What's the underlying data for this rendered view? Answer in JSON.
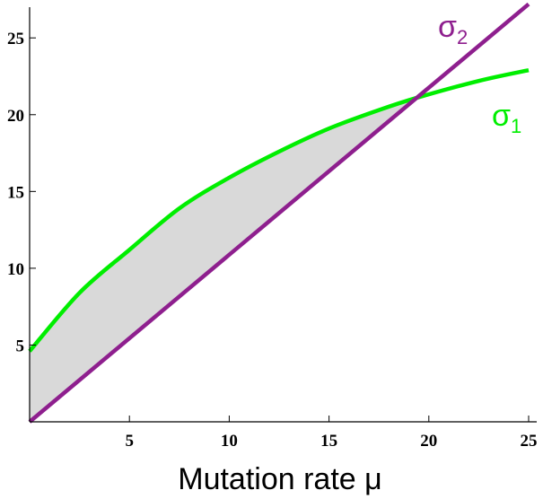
{
  "chart_data": {
    "type": "line",
    "title": "",
    "xlabel": "Mutation rate μ",
    "ylabel": "",
    "xlim": [
      0,
      25
    ],
    "ylim": [
      0,
      27
    ],
    "xticks": [
      5,
      10,
      15,
      20,
      25
    ],
    "yticks": [
      5,
      10,
      15,
      20,
      25
    ],
    "grid": false,
    "legend": "inline labels at right end of curves",
    "series": [
      {
        "name": "σ1",
        "label_main": "σ",
        "label_sub": "1",
        "color": "#00ee00",
        "x": [
          0,
          2.5,
          5,
          7.5,
          10,
          12.5,
          15,
          17.5,
          19.4,
          22.5,
          25
        ],
        "y": [
          4.6,
          8.4,
          11.2,
          13.9,
          15.9,
          17.6,
          19.1,
          20.3,
          21.1,
          22.2,
          22.9
        ]
      },
      {
        "name": "σ2",
        "label_main": "σ",
        "label_sub": "2",
        "color": "#8e1f8e",
        "x": [
          0,
          25
        ],
        "y": [
          0,
          27.2
        ]
      }
    ],
    "shaded_region": {
      "between": [
        "σ1",
        "σ2"
      ],
      "x_from": 0,
      "x_to": 19.4,
      "color": "#d9d9d9"
    }
  }
}
